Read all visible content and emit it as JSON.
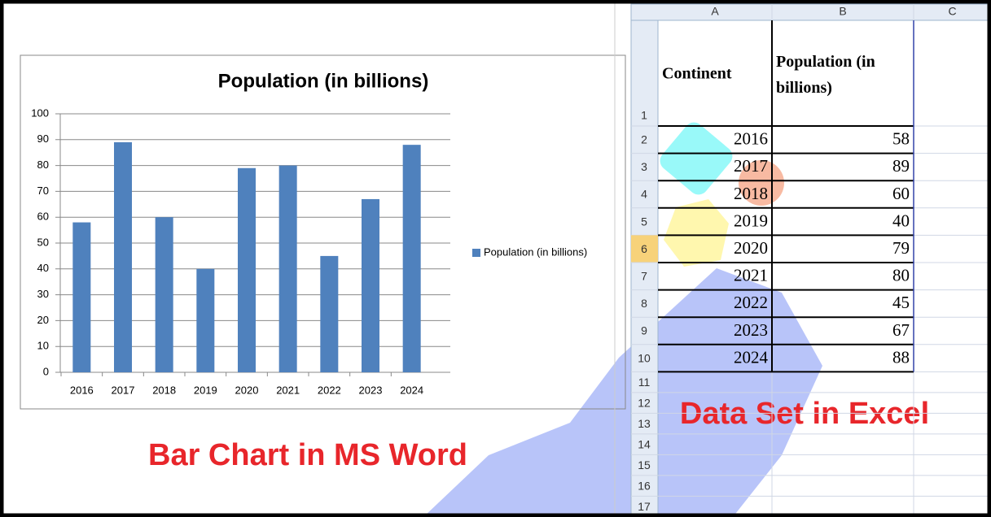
{
  "chart_data": {
    "type": "bar",
    "title": "Population (in billions)",
    "categories": [
      "2016",
      "2017",
      "2018",
      "2019",
      "2020",
      "2021",
      "2022",
      "2023",
      "2024"
    ],
    "series": [
      {
        "name": "Population (in billions)",
        "color": "#4f81bd",
        "values": [
          58,
          89,
          60,
          40,
          79,
          80,
          45,
          67,
          88
        ]
      }
    ],
    "ylim": [
      0,
      100
    ],
    "yticks": [
      0,
      10,
      20,
      30,
      40,
      50,
      60,
      70,
      80,
      90,
      100
    ],
    "grid": true,
    "legend": "right"
  },
  "spreadsheet": {
    "columns": [
      "A",
      "B",
      "C"
    ],
    "row_numbers": [
      1,
      2,
      3,
      4,
      5,
      6,
      7,
      8,
      9,
      10,
      11,
      12,
      13,
      14,
      15,
      16,
      17
    ],
    "rows": [
      [
        "Continent",
        "Population (in billions)"
      ],
      [
        2016,
        58
      ],
      [
        2017,
        89
      ],
      [
        2018,
        60
      ],
      [
        2019,
        40
      ],
      [
        2020,
        79
      ],
      [
        2021,
        80
      ],
      [
        2022,
        45
      ],
      [
        2023,
        67
      ],
      [
        2024,
        88
      ]
    ]
  },
  "captions": {
    "chart": "Bar Chart in MS Word",
    "sheet": "Data Set in Excel"
  }
}
